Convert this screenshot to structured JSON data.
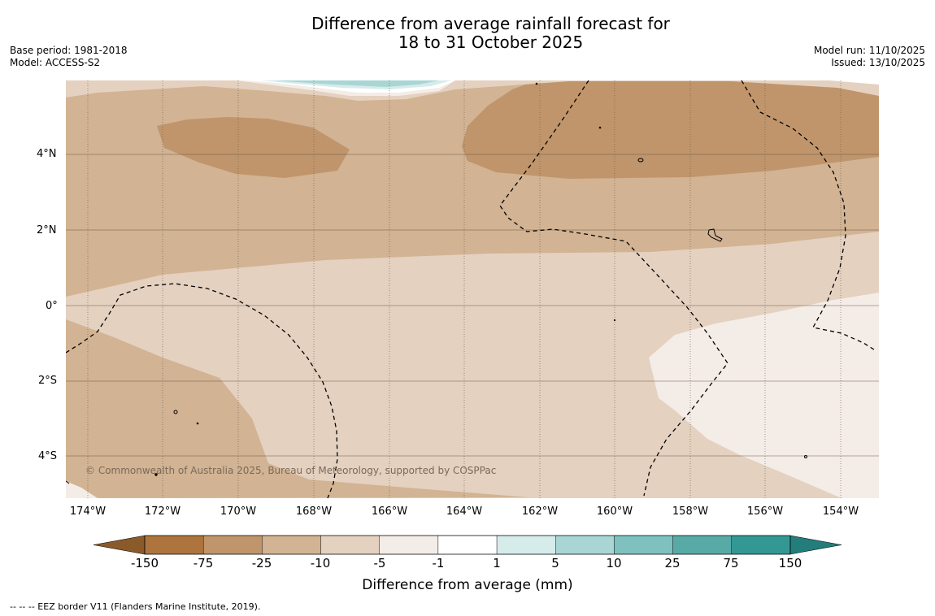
{
  "title": {
    "line1": "Difference from average rainfall forecast for",
    "line2": "18 to 31 October 2025"
  },
  "meta": {
    "base_period": "Base period: 1981-2018",
    "model": "Model: ACCESS-S2",
    "model_run": "Model run: 11/10/2025",
    "issued": "Issued: 13/10/2025"
  },
  "map": {
    "lat_labels": [
      "4°N",
      "2°N",
      "0°",
      "2°S",
      "4°S"
    ],
    "lon_labels": [
      "174°W",
      "172°W",
      "170°W",
      "168°W",
      "166°W",
      "164°W",
      "162°W",
      "160°W",
      "158°W",
      "156°W",
      "154°W"
    ],
    "copyright": "© Commonwealth of Australia 2025, Bureau of Meteorology, supported by COSPPac",
    "colors": {
      "very_dry": "#c0956b",
      "dry": "#d2b393",
      "slightly_dry": "#e4d1c0",
      "near_dry": "#f4ece6",
      "neutral": "#ffffff",
      "wet_light": "#d5eceb",
      "wet": "#a9d6d5"
    }
  },
  "colorbar": {
    "tick_labels": [
      "-150",
      "-75",
      "-25",
      "-10",
      "-5",
      "-1",
      "1",
      "5",
      "10",
      "25",
      "75",
      "150"
    ],
    "colors": [
      "#ad743d",
      "#c0956b",
      "#d2b393",
      "#e4d1c0",
      "#f4ece6",
      "#ffffff",
      "#d5eceb",
      "#a9d6d5",
      "#7ec1be",
      "#58aaa7",
      "#339894"
    ],
    "under_color": "#8a5a2b",
    "over_color": "#237d7a",
    "title": "Difference from average (mm)"
  },
  "footnote": "--  --  -- EEZ border V11 (Flanders Marine Institute, 2019)."
}
